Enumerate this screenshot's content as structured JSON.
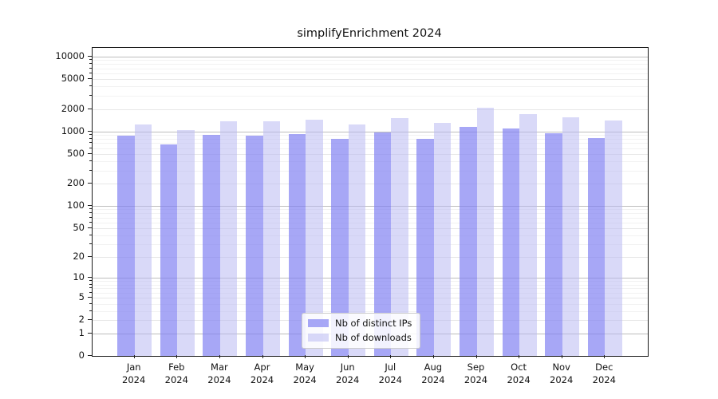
{
  "title": "simplifyEnrichment 2024",
  "chart_data": {
    "type": "bar",
    "title": "simplifyEnrichment 2024",
    "categories": [
      "Jan 2024",
      "Feb 2024",
      "Mar 2024",
      "Apr 2024",
      "May 2024",
      "Jun 2024",
      "Jul 2024",
      "Aug 2024",
      "Sep 2024",
      "Oct 2024",
      "Nov 2024",
      "Dec 2024"
    ],
    "series": [
      {
        "name": "Nb of distinct IPs",
        "color": "#8282f2",
        "values": [
          875,
          670,
          900,
          885,
          920,
          805,
          965,
          795,
          1150,
          1090,
          940,
          815
        ]
      },
      {
        "name": "Nb of downloads",
        "color": "#b9b9f2",
        "values": [
          1250,
          1050,
          1380,
          1360,
          1430,
          1240,
          1500,
          1320,
          2080,
          1720,
          1550,
          1420
        ]
      }
    ],
    "xlabel": "",
    "ylabel": "",
    "yscale": "log1p",
    "ylim": [
      0,
      13000
    ],
    "yticks": [
      0,
      1,
      2,
      5,
      10,
      20,
      50,
      100,
      200,
      500,
      1000,
      2000,
      5000,
      10000
    ],
    "yticks_minor": [
      3,
      4,
      6,
      7,
      8,
      9,
      30,
      40,
      60,
      70,
      80,
      90,
      300,
      400,
      600,
      700,
      800,
      900,
      3000,
      4000,
      6000,
      7000,
      8000,
      9000
    ],
    "grid": "on",
    "legend_position": "lower center",
    "grid_color_major": "#e7e7e7",
    "grid_color_minor": "#f2f2f2",
    "grid_color_decade": "#bdbdbd"
  }
}
